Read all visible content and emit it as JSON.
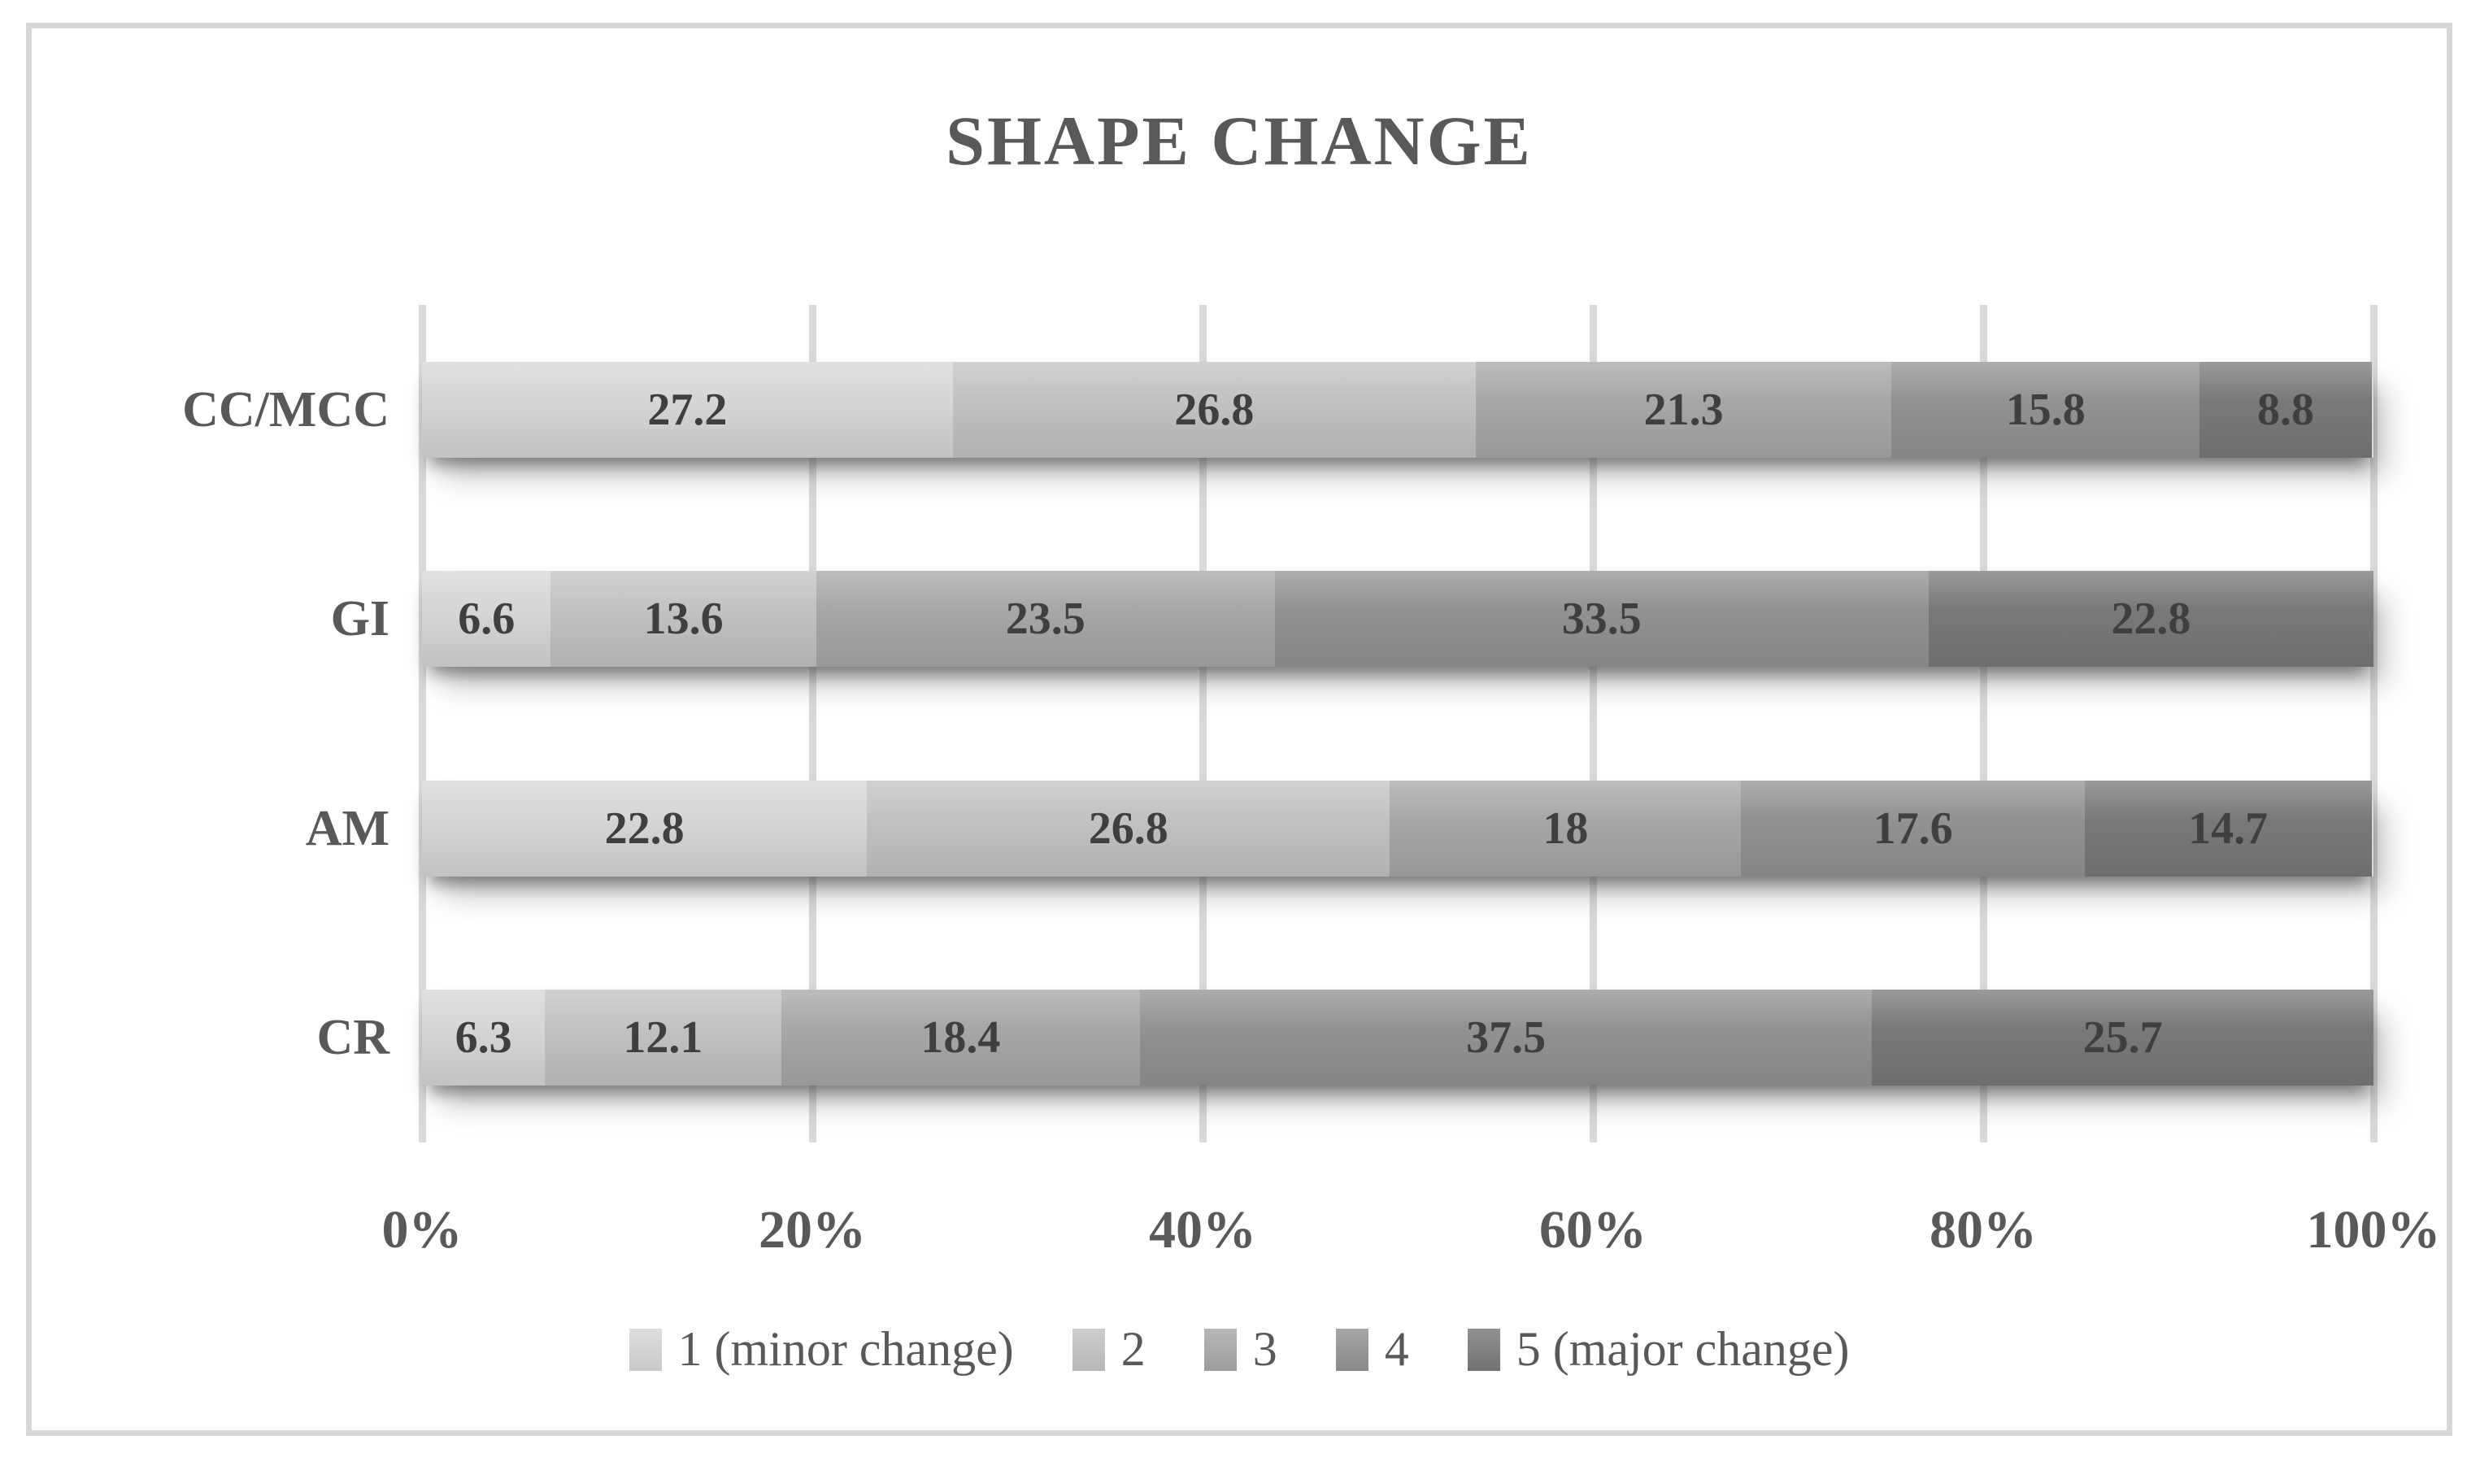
{
  "title": "SHAPE CHANGE",
  "text_color": "#595959",
  "value_label_color": "#3f3f3f",
  "gridline_color": "#d9d9d9",
  "frame_border_color": "#d7d7d7",
  "chart_data": {
    "type": "bar",
    "orientation": "horizontal",
    "stacked": true,
    "title": "SHAPE CHANGE",
    "categories": [
      "CC/MCC",
      "GI",
      "AM",
      "CR"
    ],
    "series": [
      {
        "name": "1 (minor change)",
        "color": "#d6d6d6",
        "values": [
          27.2,
          6.6,
          22.8,
          6.3
        ]
      },
      {
        "name": "2",
        "color": "#c2c2c2",
        "values": [
          26.8,
          13.6,
          26.8,
          12.1
        ]
      },
      {
        "name": "3",
        "color": "#a7a7a7",
        "values": [
          21.3,
          23.5,
          18,
          18.4
        ]
      },
      {
        "name": "4",
        "color": "#929292",
        "values": [
          15.8,
          33.5,
          17.6,
          37.5
        ]
      },
      {
        "name": "5 (major change)",
        "color": "#797979",
        "values": [
          8.8,
          22.8,
          14.7,
          25.7
        ]
      }
    ],
    "x_axis": {
      "ticks": [
        "0%",
        "20%",
        "40%",
        "60%",
        "80%",
        "100%"
      ],
      "min": 0,
      "max": 100
    },
    "grid": "vertical",
    "legend_position": "bottom",
    "legend_entries": [
      "1 (minor change)",
      "2",
      "3",
      "4",
      "5 (major change)"
    ]
  }
}
